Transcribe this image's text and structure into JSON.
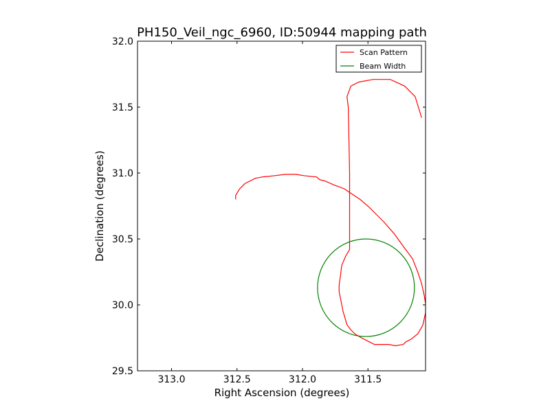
{
  "chart_data": {
    "type": "line",
    "title": "PH150_Veil_ngc_6960, ID:50944 mapping path",
    "xlabel": "Right Ascension (degrees)",
    "ylabel": "Declination (degrees)",
    "xlim": [
      313.26,
      311.06
    ],
    "ylim": [
      29.5,
      32.0
    ],
    "x_inverted": true,
    "xticks": [
      313.0,
      312.5,
      312.0,
      311.5
    ],
    "xtick_labels": [
      "313.0",
      "312.5",
      "312.0",
      "311.5"
    ],
    "yticks": [
      29.5,
      30.0,
      30.5,
      31.0,
      31.5,
      32.0
    ],
    "ytick_labels": [
      "29.5",
      "30.0",
      "30.5",
      "31.0",
      "31.5",
      "32.0"
    ],
    "grid": false,
    "legend": {
      "position": "top-right",
      "entries": [
        "Scan Pattern",
        "Beam Width"
      ]
    },
    "series": [
      {
        "name": "Scan Pattern",
        "color": "#ff0000",
        "x": [
          312.51,
          312.51,
          312.48,
          312.44,
          312.36,
          312.31,
          312.21,
          312.13,
          312.09,
          312.05,
          311.99,
          311.89,
          311.87,
          311.83,
          311.76,
          311.68,
          311.62,
          311.56,
          311.49,
          311.44,
          311.38,
          311.3,
          311.22,
          311.16,
          311.12,
          311.09,
          311.07,
          311.06,
          311.06,
          311.08,
          311.09,
          311.12,
          311.17,
          311.21,
          311.23,
          311.29,
          311.34,
          311.37,
          311.41,
          311.45,
          311.47,
          311.49,
          311.51,
          311.55,
          311.6,
          311.63,
          311.66,
          311.69,
          311.71,
          311.72,
          311.72,
          311.71,
          311.7,
          311.67,
          311.64,
          311.64,
          311.65,
          311.66,
          311.63,
          311.57,
          311.46,
          311.33,
          311.22,
          311.14,
          311.09
        ],
        "y": [
          30.8,
          30.83,
          30.88,
          30.92,
          30.96,
          30.97,
          30.98,
          30.99,
          30.99,
          30.99,
          30.98,
          30.97,
          30.95,
          30.94,
          30.91,
          30.88,
          30.84,
          30.8,
          30.74,
          30.69,
          30.63,
          30.54,
          30.43,
          30.35,
          30.25,
          30.16,
          30.07,
          30.01,
          29.94,
          29.85,
          29.83,
          29.78,
          29.74,
          29.72,
          29.7,
          29.69,
          29.7,
          29.7,
          29.7,
          29.7,
          29.71,
          29.72,
          29.73,
          29.75,
          29.78,
          29.81,
          29.85,
          29.95,
          30.05,
          30.1,
          30.15,
          30.22,
          30.3,
          30.37,
          30.42,
          31.0,
          31.5,
          31.58,
          31.66,
          31.69,
          31.71,
          31.71,
          31.66,
          31.58,
          31.42
        ]
      },
      {
        "name": "Beam Width",
        "color": "#008000",
        "shape": "circle",
        "center": [
          311.515,
          30.13
        ],
        "radius_x": 0.37,
        "radius_y": 0.37
      }
    ]
  }
}
